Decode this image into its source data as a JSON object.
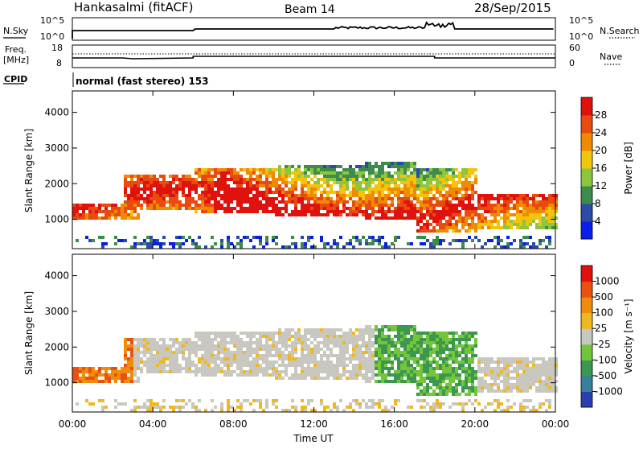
{
  "header": {
    "site": "Hankasalmi (fitACF)",
    "beam": "Beam 14",
    "date": "28/Sep/2015"
  },
  "panels": {
    "nsky": {
      "label": "N.Sky",
      "ticks": [
        "10^5",
        "10^0"
      ],
      "right_label": "N.Search",
      "right_ticks": [
        "10^5",
        "10^0"
      ]
    },
    "freq": {
      "label": "Freq.",
      "unit": "[MHz]",
      "ticks": [
        "18",
        "8"
      ],
      "right_label": "Nave",
      "right_ticks": [
        "60",
        "0"
      ]
    },
    "cpid": {
      "label": "CPID",
      "text": "normal (fast stereo) 153"
    }
  },
  "colorbars": {
    "power": {
      "title": "Power [dB]",
      "ticks": [
        "28",
        "24",
        "20",
        "16",
        "12",
        "8",
        "4"
      ],
      "colors": [
        "#0a1eea",
        "#2c4aa6",
        "#3d8c4b",
        "#8cc63f",
        "#f2c40b",
        "#f08a00",
        "#e84a10",
        "#e0120e"
      ]
    },
    "velocity": {
      "title": "Velocity [m s⁻¹]",
      "ticks": [
        "1000",
        "500",
        "100",
        "25",
        "-25",
        "-100",
        "-500",
        "-1000"
      ],
      "colors": [
        "#2a3fb0",
        "#3a7f9a",
        "#3c9850",
        "#73c63a",
        "#c8c8c0",
        "#f0b820",
        "#f08c0c",
        "#ea5010",
        "#e0100c"
      ]
    }
  },
  "chart_data": [
    {
      "type": "heatmap",
      "name": "power",
      "ylabel": "Slant Range [km]",
      "xlim": [
        "00:00",
        "24:00"
      ],
      "ylim": [
        180,
        4600
      ],
      "yticks": [
        "1000",
        "2000",
        "3000",
        "4000"
      ],
      "scale": "Power [dB]",
      "value_range": [
        0,
        30
      ]
    },
    {
      "type": "heatmap",
      "name": "velocity",
      "ylabel": "Slant Range [km]",
      "xlabel": "Time UT",
      "xlim": [
        "00:00",
        "24:00"
      ],
      "ylim": [
        180,
        4600
      ],
      "yticks": [
        "1000",
        "2000",
        "3000",
        "4000"
      ],
      "xticks": [
        "00:00",
        "04:00",
        "08:00",
        "12:00",
        "16:00",
        "20:00",
        "00:00"
      ],
      "scale": "Velocity [m s⁻¹]",
      "value_range": [
        -1000,
        1000
      ]
    }
  ]
}
